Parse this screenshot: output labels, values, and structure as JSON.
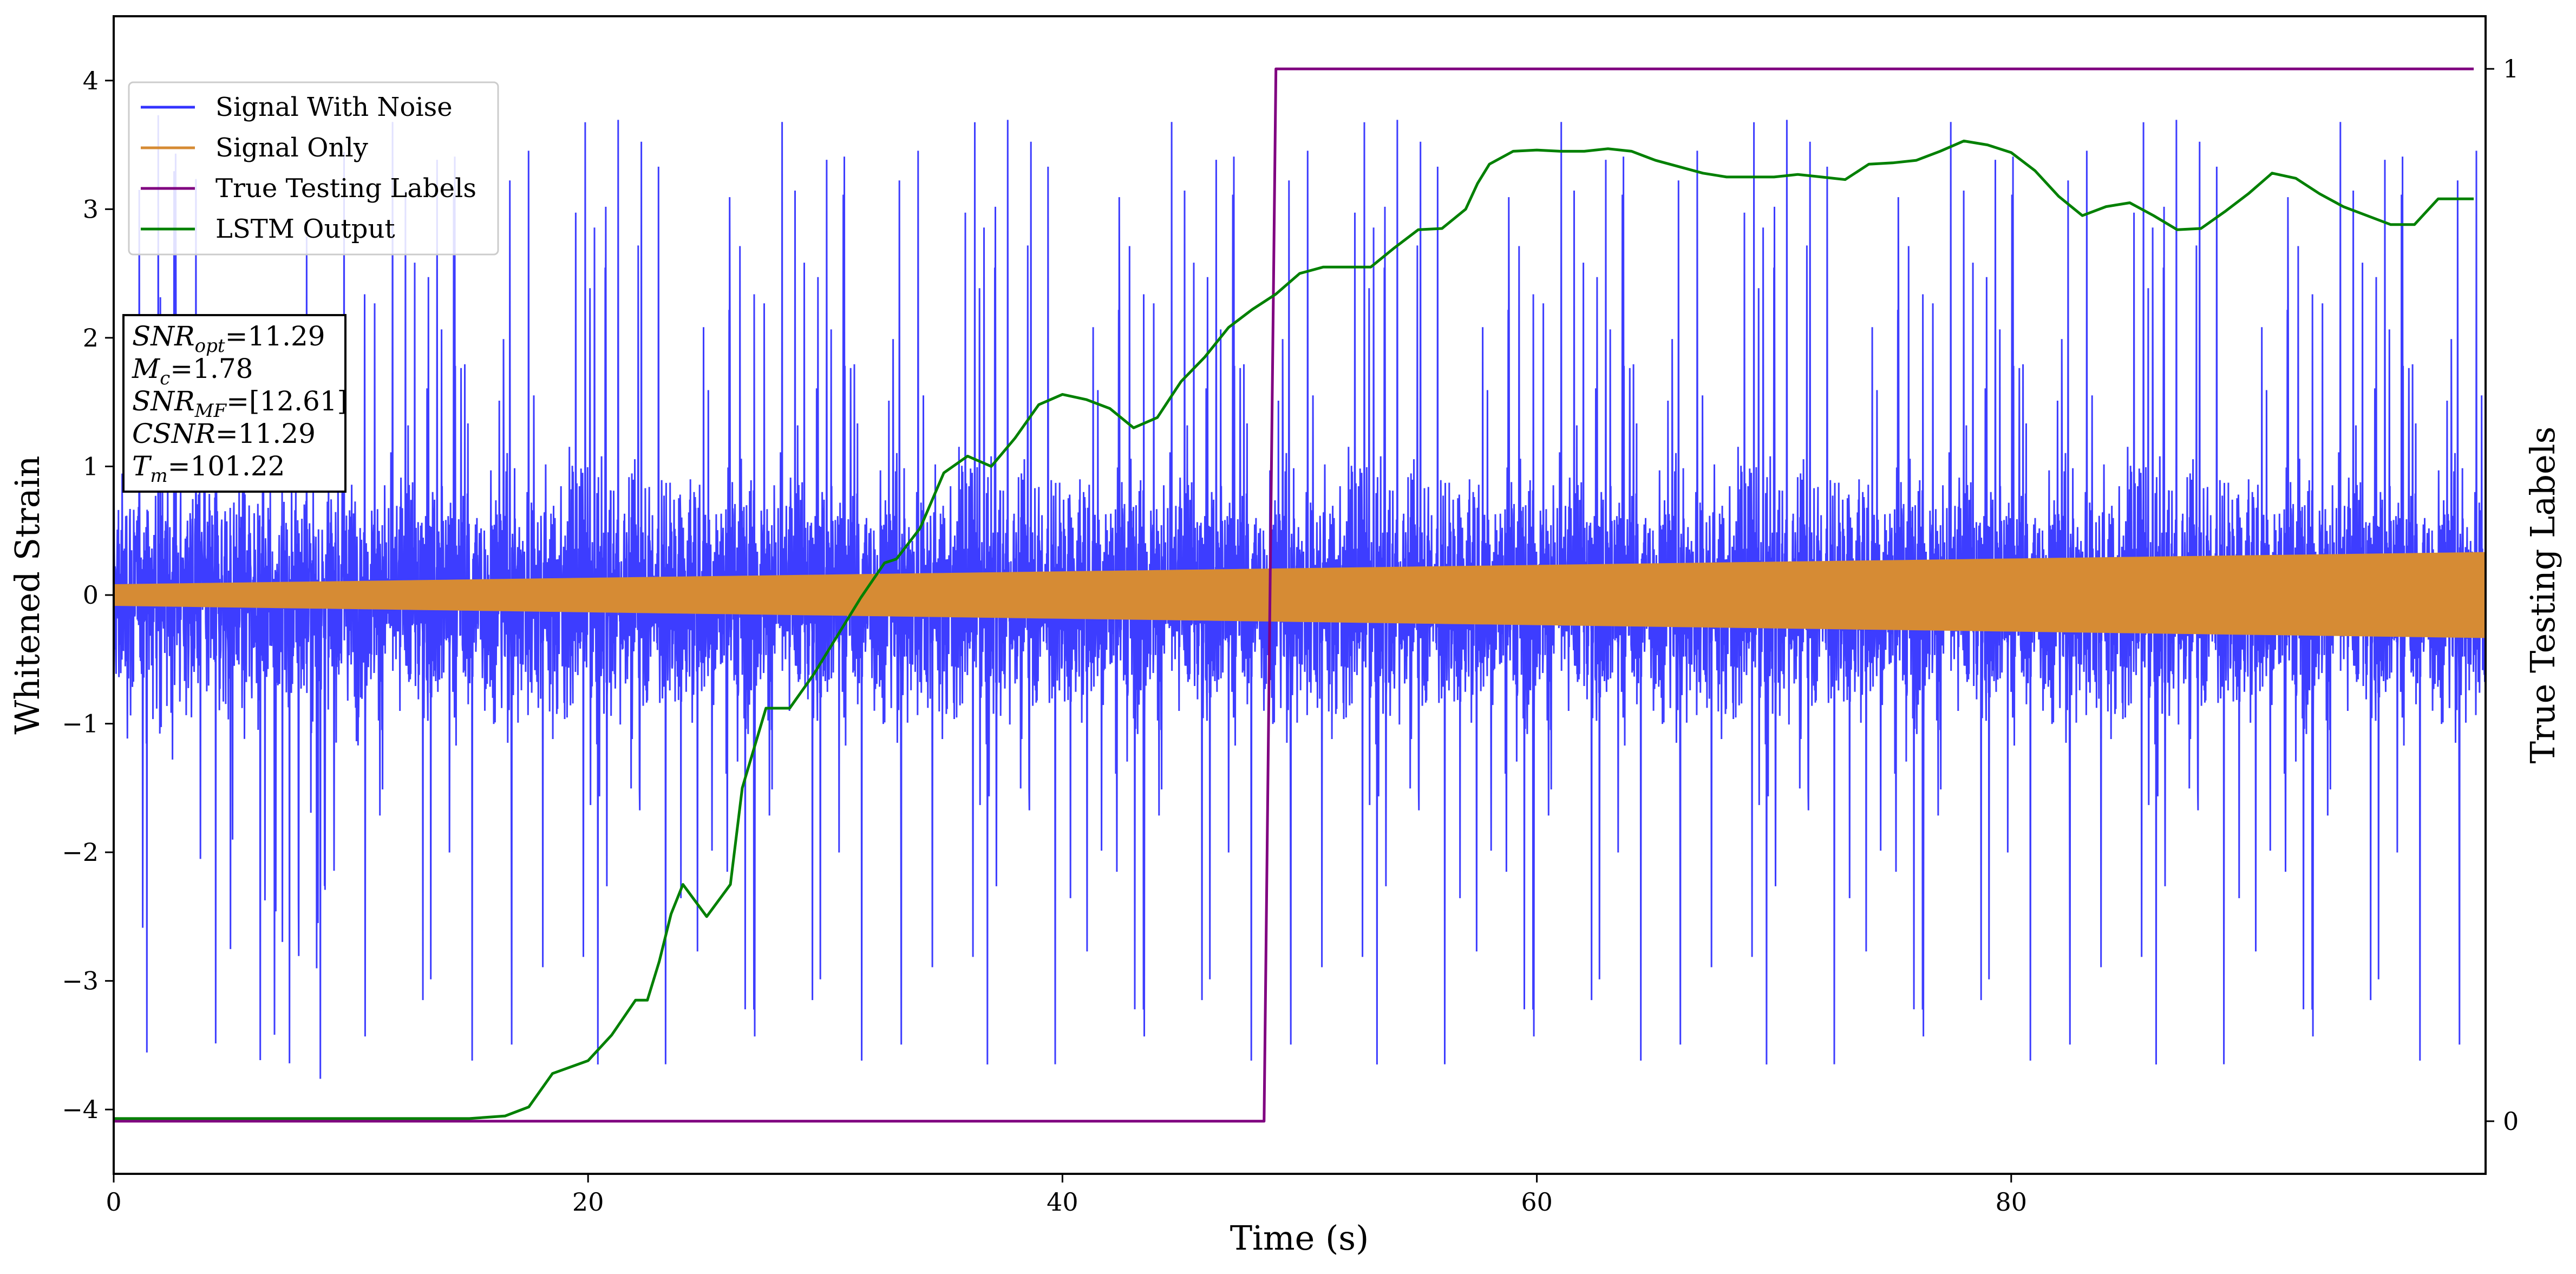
{
  "chart_data": {
    "type": "line",
    "title": "",
    "xlabel": "Time (s)",
    "ylabel": "Whitened Strain",
    "y2label": "True Testing Labels",
    "xlim": [
      0,
      100
    ],
    "ylim": [
      -4.5,
      4.5
    ],
    "y2lim": [
      -0.05,
      1.05
    ],
    "xticks": [
      0,
      20,
      40,
      60,
      80
    ],
    "yticks": [
      -4,
      -3,
      -2,
      -1,
      0,
      1,
      2,
      3,
      4
    ],
    "yticklabels": [
      "−4",
      "−3",
      "−2",
      "−1",
      "0",
      "1",
      "2",
      "3",
      "4"
    ],
    "y2ticks": [
      0,
      1
    ],
    "grid": false,
    "legend_position": "upper-left",
    "series": [
      {
        "name": "Signal With Noise",
        "axis": "left",
        "color": "#3333ff",
        "description": "dense noisy oscillation, amplitude mostly within ±1.5 with spikes reaching about ±3.8"
      },
      {
        "name": "Signal Only",
        "axis": "left",
        "color": "#d68b34",
        "envelope": {
          "x": [
            0,
            100
          ],
          "amplitude": [
            0.08,
            0.33
          ]
        }
      },
      {
        "name": "True Testing Labels",
        "axis": "right",
        "color": "#800080",
        "x": [
          0,
          48.5,
          49.0,
          99.5
        ],
        "y": [
          0,
          0,
          1,
          1
        ]
      },
      {
        "name": "LSTM Output",
        "axis": "left",
        "color": "#008000",
        "x": [
          0,
          15,
          16.5,
          17.5,
          18.5,
          20,
          21,
          22,
          22.5,
          23,
          23.5,
          24,
          25,
          26,
          26.5,
          27.5,
          28.5,
          29.5,
          30.5,
          31.5,
          32.5,
          33,
          34,
          35,
          36,
          37,
          38,
          39,
          40,
          41,
          42,
          43,
          44,
          45,
          46,
          47,
          48,
          49,
          50,
          51,
          52,
          53,
          54,
          55,
          56,
          57,
          57.5,
          58,
          59,
          60,
          61,
          62,
          63,
          64,
          65,
          66,
          67,
          68,
          69,
          70,
          71,
          72,
          73,
          74,
          75,
          76,
          77,
          78,
          79,
          80,
          81,
          82,
          83,
          84,
          85,
          86,
          87,
          88,
          89,
          90,
          91,
          92,
          93,
          94,
          95,
          96,
          97,
          98,
          99.5
        ],
        "y": [
          -4.07,
          -4.07,
          -4.05,
          -3.98,
          -3.72,
          -3.62,
          -3.42,
          -3.15,
          -3.15,
          -2.85,
          -2.48,
          -2.25,
          -2.5,
          -2.25,
          -1.5,
          -0.88,
          -0.88,
          -0.62,
          -0.32,
          -0.02,
          0.25,
          0.28,
          0.52,
          0.95,
          1.08,
          1.0,
          1.22,
          1.48,
          1.56,
          1.52,
          1.45,
          1.3,
          1.38,
          1.66,
          1.85,
          2.08,
          2.22,
          2.34,
          2.5,
          2.55,
          2.55,
          2.55,
          2.7,
          2.84,
          2.85,
          3.0,
          3.2,
          3.35,
          3.45,
          3.46,
          3.45,
          3.45,
          3.47,
          3.45,
          3.38,
          3.33,
          3.28,
          3.25,
          3.25,
          3.25,
          3.27,
          3.25,
          3.23,
          3.35,
          3.36,
          3.38,
          3.45,
          3.53,
          3.5,
          3.44,
          3.3,
          3.1,
          2.95,
          3.02,
          3.05,
          2.95,
          2.84,
          2.85,
          2.98,
          3.12,
          3.28,
          3.24,
          3.12,
          3.02,
          2.95,
          2.88,
          2.88,
          3.08,
          3.08
        ]
      }
    ],
    "annotation": {
      "lines": [
        {
          "sym": "SNR",
          "sub": "opt",
          "value": "=11.29"
        },
        {
          "sym": "M",
          "sub": "c",
          "value": "=1.78"
        },
        {
          "sym": "SNR",
          "sub": "MF",
          "value": "=[12.61]"
        },
        {
          "sym": "CSNR",
          "sub": "",
          "value": "=11.29"
        },
        {
          "sym": "T",
          "sub": "m",
          "value": "=101.22"
        }
      ]
    }
  }
}
